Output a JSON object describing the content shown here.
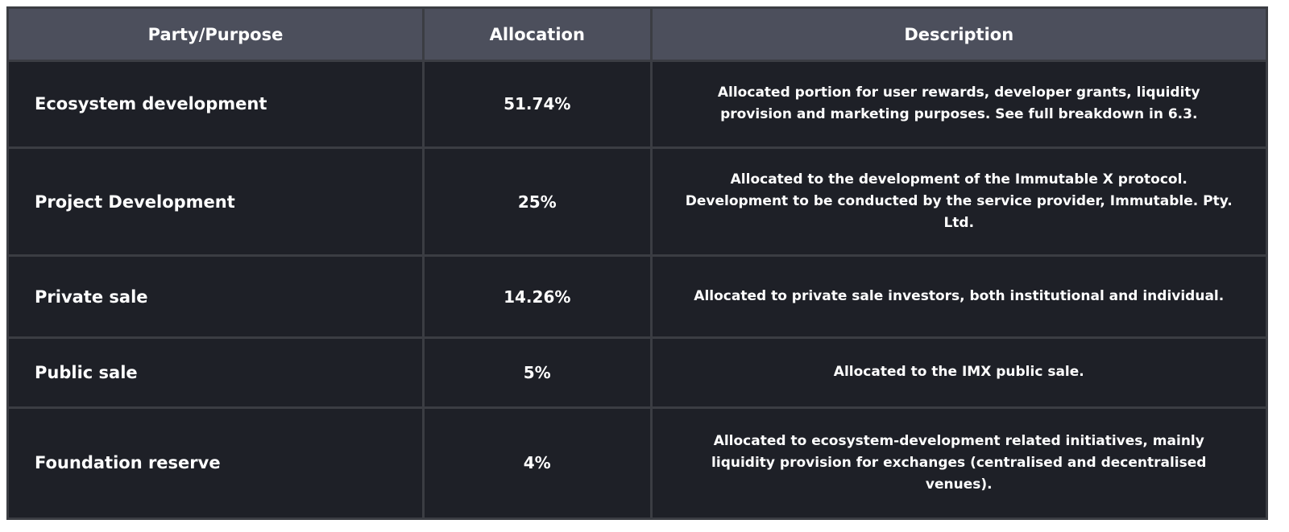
{
  "table": {
    "headers": [
      "Party/Purpose",
      "Allocation",
      "Description"
    ],
    "rows": [
      {
        "party": "Ecosystem development",
        "allocation": "51.74%",
        "description": "Allocated portion for user rewards, developer grants, liquidity provision and marketing purposes. See full breakdown in 6.3."
      },
      {
        "party": "Project Development",
        "allocation": "25%",
        "description": "Allocated to the development of the Immutable X protocol. Development to be conducted by the service provider, Immutable. Pty. Ltd."
      },
      {
        "party": "Private sale",
        "allocation": "14.26%",
        "description": "Allocated to private sale investors, both institutional and individual."
      },
      {
        "party": "Public sale",
        "allocation": "5%",
        "description": "Allocated to the IMX public sale."
      },
      {
        "party": "Foundation reserve",
        "allocation": "4%",
        "description": "Allocated to ecosystem-development related initiatives, mainly liquidity provision for exchanges (centralised and decentralised venues)."
      }
    ]
  },
  "colors": {
    "header_bg": "#4c4f5c",
    "cell_bg": "#1e2027",
    "grid_lines": "#3b3d43",
    "text": "#ffffff"
  }
}
